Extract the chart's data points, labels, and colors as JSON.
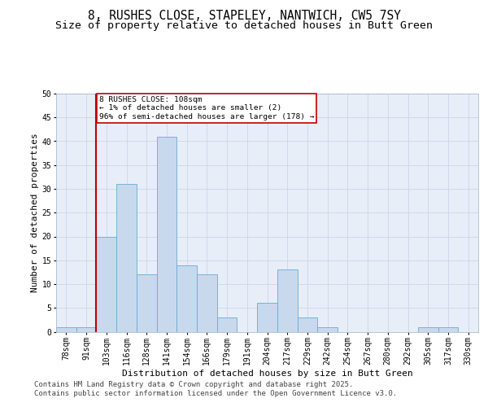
{
  "title1": "8, RUSHES CLOSE, STAPELEY, NANTWICH, CW5 7SY",
  "title2": "Size of property relative to detached houses in Butt Green",
  "xlabel": "Distribution of detached houses by size in Butt Green",
  "ylabel": "Number of detached properties",
  "bins": [
    "78sqm",
    "91sqm",
    "103sqm",
    "116sqm",
    "128sqm",
    "141sqm",
    "154sqm",
    "166sqm",
    "179sqm",
    "191sqm",
    "204sqm",
    "217sqm",
    "229sqm",
    "242sqm",
    "254sqm",
    "267sqm",
    "280sqm",
    "292sqm",
    "305sqm",
    "317sqm",
    "330sqm"
  ],
  "values": [
    1,
    1,
    20,
    31,
    12,
    41,
    14,
    12,
    3,
    0,
    6,
    13,
    3,
    1,
    0,
    0,
    0,
    0,
    1,
    1,
    0
  ],
  "bar_color": "#c8d9ed",
  "bar_edge_color": "#6aaad4",
  "vline_color": "#c00000",
  "annotation_text": "8 RUSHES CLOSE: 108sqm\n← 1% of detached houses are smaller (2)\n96% of semi-detached houses are larger (178) →",
  "annotation_box_color": "#ffffff",
  "annotation_box_edge": "#c00000",
  "ylim": [
    0,
    50
  ],
  "yticks": [
    0,
    5,
    10,
    15,
    20,
    25,
    30,
    35,
    40,
    45,
    50
  ],
  "grid_color": "#ccd6e8",
  "background_color": "#e8eef8",
  "footer": "Contains HM Land Registry data © Crown copyright and database right 2025.\nContains public sector information licensed under the Open Government Licence v3.0.",
  "title_fontsize": 10.5,
  "subtitle_fontsize": 9.5,
  "axis_label_fontsize": 8,
  "tick_fontsize": 7,
  "footer_fontsize": 6.5,
  "vline_bin_index": 2
}
